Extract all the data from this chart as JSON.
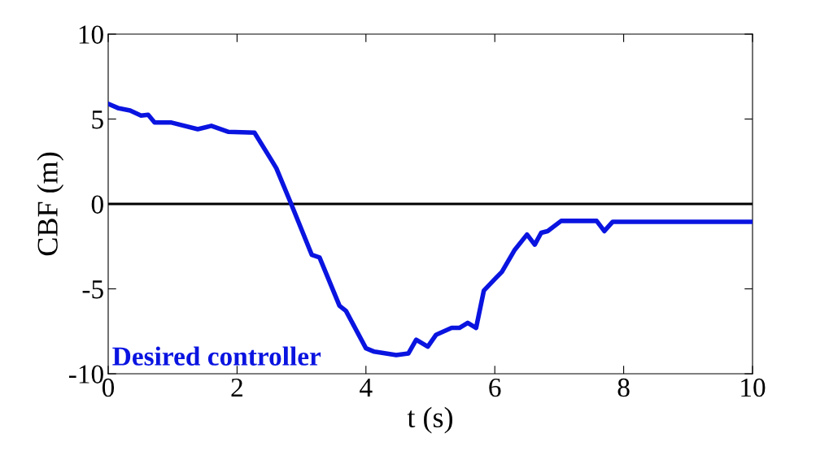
{
  "chart_data": {
    "type": "line",
    "xlabel": "t (s)",
    "ylabel": "CBF (m)",
    "xlim": [
      0,
      10
    ],
    "xticks": [
      0,
      2,
      4,
      6,
      8,
      10
    ],
    "ylim": [
      -10,
      10
    ],
    "yticks": [
      -10,
      -5,
      0,
      5,
      10
    ],
    "grid": false,
    "legend": false,
    "line_style": "solid",
    "marker": "none",
    "ref_lines": [
      {
        "axis": "y",
        "value": 0,
        "color": "#000000"
      }
    ],
    "annotations": [
      "Desired controller"
    ],
    "series": [
      {
        "color": "#0a14e0",
        "x": [
          0,
          0.15,
          0.34,
          0.51,
          0.62,
          0.72,
          0.97,
          1.39,
          1.6,
          1.86,
          2.27,
          2.53,
          2.61,
          2.84,
          3.16,
          3.28,
          3.59,
          3.69,
          4.0,
          4.13,
          4.47,
          4.66,
          4.78,
          4.96,
          5.09,
          5.33,
          5.45,
          5.58,
          5.71,
          5.83,
          6.02,
          6.11,
          6.31,
          6.5,
          6.62,
          6.72,
          6.82,
          7.03,
          7.58,
          7.7,
          7.83,
          9.97
        ],
        "values": [
          5.9,
          5.65,
          5.5,
          5.2,
          5.25,
          4.8,
          4.8,
          4.4,
          4.6,
          4.25,
          4.2,
          2.6,
          2.1,
          0,
          -3,
          -3.15,
          -6,
          -6.3,
          -8.5,
          -8.7,
          -8.9,
          -8.8,
          -8.0,
          -8.4,
          -7.7,
          -7.3,
          -7.3,
          -7.0,
          -7.3,
          -5.1,
          -4.35,
          -4.0,
          -2.7,
          -1.8,
          -2.4,
          -1.7,
          -1.6,
          -1.0,
          -1.0,
          -1.6,
          -1.05,
          -1.05
        ]
      }
    ]
  }
}
